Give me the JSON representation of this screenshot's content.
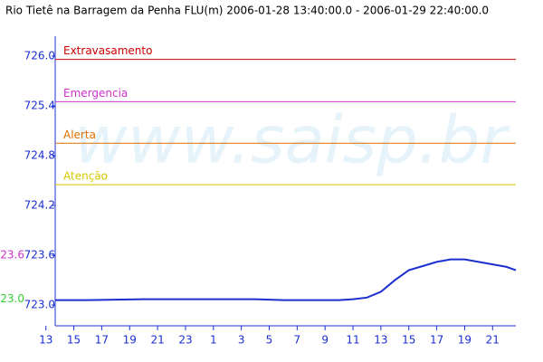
{
  "chart_data": {
    "type": "line",
    "title": "Rio Tietê na Barragem da Penha FLU(m) 2006-01-28 13:40:00.0 - 2006-01-29 22:40:00.0",
    "watermark": "www.saisp.br",
    "x": [
      13.667,
      16,
      20,
      24,
      28,
      30,
      32,
      34,
      35,
      36,
      37,
      38,
      39,
      40,
      41,
      42,
      43,
      44,
      45,
      46,
      46.667
    ],
    "series": [
      {
        "color": "#1c2fd0",
        "values": [
          723.06,
          723.06,
          723.07,
          723.07,
          723.07,
          723.06,
          723.06,
          723.06,
          723.07,
          723.09,
          723.16,
          723.3,
          723.42,
          723.47,
          723.52,
          723.55,
          723.55,
          723.52,
          723.49,
          723.46,
          723.42
        ]
      }
    ],
    "xlim": [
      13.667,
      46.667
    ],
    "xticks": [
      13,
      15,
      17,
      19,
      21,
      23,
      {
        "value": 25,
        "label": "1"
      },
      {
        "value": 27,
        "label": "3"
      },
      {
        "value": 29,
        "label": "5"
      },
      {
        "value": 31,
        "label": "7"
      },
      {
        "value": 33,
        "label": "9"
      },
      {
        "value": 35,
        "label": "11"
      },
      {
        "value": 37,
        "label": "13"
      },
      {
        "value": 39,
        "label": "15"
      },
      {
        "value": 41,
        "label": "17"
      },
      {
        "value": 43,
        "label": "19"
      },
      {
        "value": 45,
        "label": "21"
      }
    ],
    "ylim": [
      722.75,
      726.24
    ],
    "yticks": [
      {
        "value": 723,
        "label": "723.0"
      },
      723.6,
      724.2,
      724.8,
      725.4,
      {
        "value": 726,
        "label": "726.0"
      }
    ],
    "thresholds": [
      {
        "label": "Extravasamento",
        "value": 725.96,
        "color": "#cc0000"
      },
      {
        "label": "Emergencia",
        "value": 725.45,
        "color": "#cc33cc"
      },
      {
        "label": "Alerta",
        "value": 724.95,
        "color": "#e07000"
      },
      {
        "label": "Atenção",
        "value": 724.45,
        "color": "#d8c800"
      }
    ],
    "side_labels": [
      {
        "label": "23.6",
        "value": 723.6,
        "color": "#cc33cc"
      },
      {
        "label": "23.0",
        "value": 723.07,
        "color": "#33cc33"
      }
    ]
  }
}
